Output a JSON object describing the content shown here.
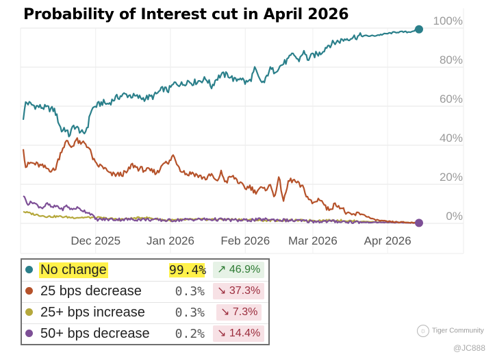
{
  "title": "Probability of Interest cut in April 2026",
  "chart_data": {
    "type": "line",
    "title": "Probability of Interest cut in April 2026",
    "xlabel": "",
    "ylabel": "",
    "ylim": [
      0,
      100
    ],
    "y_ticks": [
      "0%",
      "20%",
      "40%",
      "60%",
      "80%",
      "100%"
    ],
    "y_tick_values": [
      0,
      20,
      40,
      60,
      80,
      100
    ],
    "x_ticks": [
      "Dec 2025",
      "Jan 2026",
      "Feb 2026",
      "Mar 2026",
      "Apr 2026"
    ],
    "x_tick_values": [
      30,
      61,
      92,
      120,
      151
    ],
    "x_range": [
      0,
      164
    ],
    "x_unit": "days since Nov 1 2025",
    "series": [
      {
        "name": "No change",
        "color": "#2a7f8a",
        "x": [
          0,
          1,
          5,
          10,
          13,
          16,
          17,
          19,
          21,
          24,
          25,
          27,
          28,
          30,
          33,
          35,
          38,
          42,
          46,
          50,
          54,
          58,
          60,
          63,
          66,
          68,
          70,
          73,
          76,
          78,
          80,
          82,
          85,
          88,
          90,
          92,
          94,
          96,
          98,
          100,
          102,
          104,
          106,
          108,
          110,
          112,
          114,
          116,
          118,
          120,
          123,
          126,
          130,
          135,
          140,
          145,
          150,
          155,
          160,
          164
        ],
        "values": [
          53,
          62,
          60,
          59,
          58,
          47,
          49,
          45,
          50,
          47,
          45,
          51,
          58,
          60,
          62,
          61,
          64,
          66,
          65,
          64,
          65,
          69,
          68,
          72,
          71,
          73,
          72,
          73,
          74,
          70,
          74,
          76,
          76,
          73,
          75,
          72,
          73,
          79,
          73,
          72,
          79,
          78,
          80,
          82,
          84,
          87,
          83,
          88,
          84,
          86,
          87,
          91,
          93,
          95,
          96,
          96,
          97,
          98,
          98,
          99.4
        ]
      },
      {
        "name": "25 bps decrease",
        "color": "#b5522a",
        "x": [
          0,
          1,
          3,
          6,
          10,
          13,
          16,
          18,
          20,
          22,
          24,
          25,
          27,
          30,
          33,
          36,
          40,
          43,
          45,
          48,
          52,
          56,
          58,
          60,
          62,
          65,
          68,
          70,
          73,
          76,
          78,
          80,
          82,
          84,
          86,
          88,
          90,
          92,
          94,
          96,
          98,
          100,
          102,
          104,
          106,
          108,
          110,
          112,
          114,
          116,
          118,
          120,
          123,
          126,
          130,
          135,
          140,
          145,
          150,
          155,
          160,
          164
        ],
        "values": [
          38,
          29,
          31,
          30,
          28,
          27,
          38,
          42,
          39,
          43,
          40,
          42,
          39,
          30,
          29,
          25,
          25,
          26,
          30,
          28,
          27,
          26,
          32,
          30,
          35,
          28,
          25,
          26,
          24,
          23,
          25,
          21,
          26,
          21,
          24,
          23,
          20,
          18,
          19,
          16,
          18,
          17,
          20,
          14,
          23,
          11,
          22,
          22,
          20,
          18,
          13,
          10,
          13,
          7,
          10,
          4,
          5,
          2,
          1,
          0.6,
          0.4,
          0.3
        ]
      },
      {
        "name": "25+ bps increase",
        "color": "#b5a83c",
        "x": [
          0,
          5,
          10,
          15,
          20,
          25,
          30,
          40,
          50,
          60,
          70,
          80,
          90,
          100,
          110,
          120,
          130,
          140,
          150,
          164
        ],
        "values": [
          6,
          4.5,
          3.5,
          3.5,
          3,
          3,
          3,
          2,
          3,
          1.5,
          2,
          2,
          2,
          1.5,
          1.5,
          1.5,
          1.5,
          1,
          0.5,
          0.3
        ]
      },
      {
        "name": "50+ bps decrease",
        "color": "#7d4f96",
        "x": [
          0,
          2,
          4,
          6,
          8,
          10,
          12,
          14,
          16,
          18,
          20,
          22,
          24,
          26,
          28,
          30,
          40,
          50,
          60,
          70,
          80,
          90,
          100,
          110,
          120,
          130,
          140,
          150,
          164
        ],
        "values": [
          14,
          10,
          11,
          9,
          8,
          10,
          8,
          9,
          7,
          9,
          7,
          8,
          7,
          6,
          5,
          2,
          2,
          2,
          1.5,
          2,
          2,
          1.5,
          2,
          1.5,
          1,
          1,
          0.5,
          0.5,
          0.2
        ]
      }
    ]
  },
  "legend": [
    {
      "name": "No change",
      "value": "99.4%",
      "change": "46.9%",
      "direction": "up",
      "color": "#2a7f8a",
      "highlight": true
    },
    {
      "name": "25 bps decrease",
      "value": "0.3%",
      "change": "37.3%",
      "direction": "down",
      "color": "#b5522a",
      "highlight": false
    },
    {
      "name": "25+ bps increase",
      "value": "0.3%",
      "change": "7.3%",
      "direction": "down",
      "color": "#b5a83c",
      "highlight": false
    },
    {
      "name": "50+ bps decrease",
      "value": "0.2%",
      "change": "14.4%",
      "direction": "down",
      "color": "#7d4f96",
      "highlight": false
    }
  ],
  "arrows": {
    "up": "↗",
    "down": "↘"
  },
  "watermark": {
    "brand": "Tiger Community",
    "user": "@JC888"
  }
}
